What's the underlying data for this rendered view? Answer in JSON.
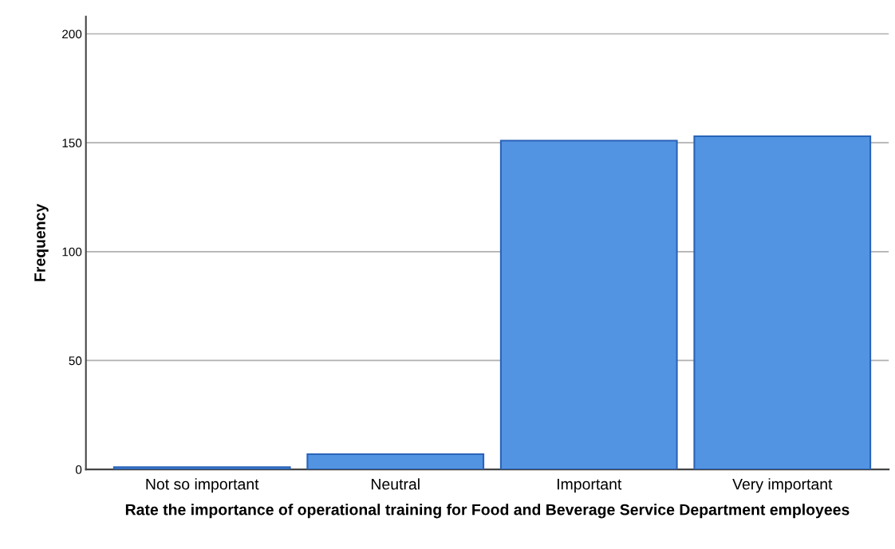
{
  "chart_data": {
    "type": "bar",
    "xlabel": "Rate the importance of operational training for Food and Beverage Service Department employees",
    "ylabel": "Frequency",
    "categories": [
      "Not so important",
      "Neutral",
      "Important",
      "Very important"
    ],
    "values": [
      1,
      7,
      151,
      153
    ],
    "color": "#5294e2",
    "ylim": [
      0,
      208
    ],
    "yticks": [
      0,
      50,
      100,
      150,
      200
    ],
    "grid": "y"
  }
}
